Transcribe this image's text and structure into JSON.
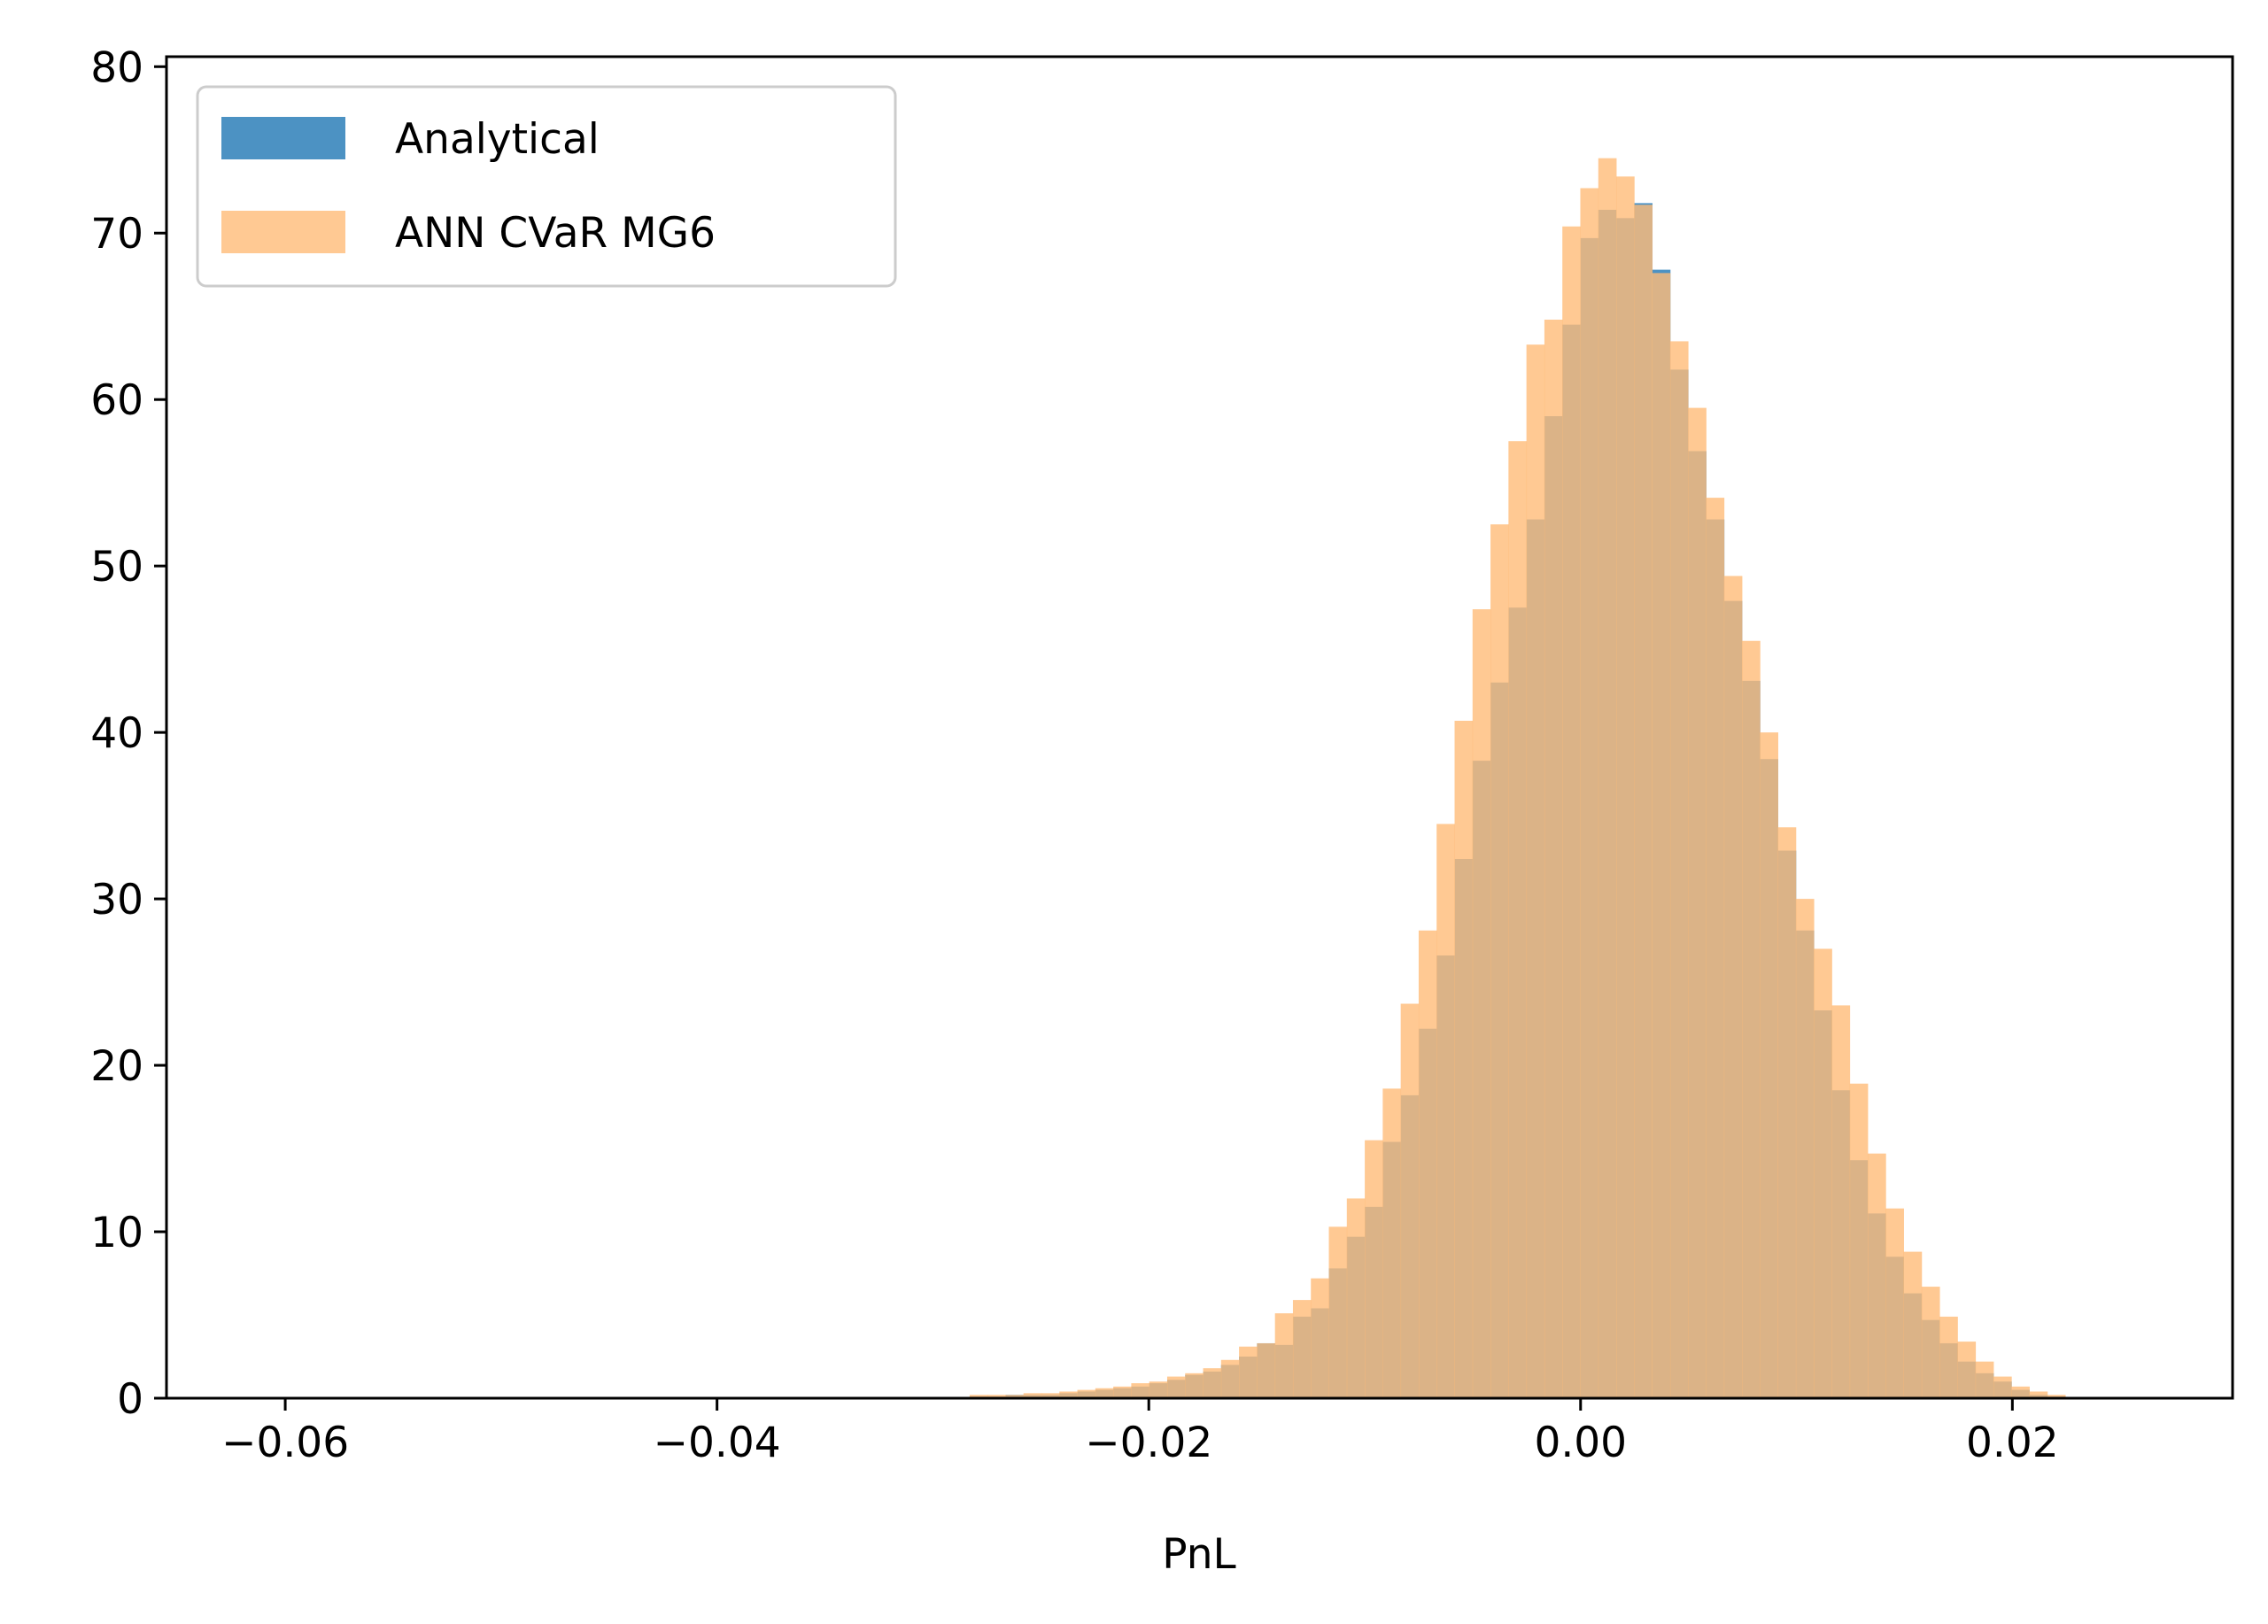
{
  "chart_data": {
    "type": "histogram",
    "title": "",
    "xlabel": "PnL",
    "ylabel": "",
    "xlim": [
      -0.0655,
      0.0302
    ],
    "ylim": [
      0,
      80.6
    ],
    "xticks": [
      -0.06,
      -0.04,
      -0.02,
      0.0,
      0.02
    ],
    "xtick_labels": [
      "−0.06",
      "−0.04",
      "−0.02",
      "0.00",
      "0.02"
    ],
    "yticks": [
      0,
      10,
      20,
      30,
      40,
      50,
      60,
      70,
      80
    ],
    "ytick_labels": [
      "0",
      "10",
      "20",
      "30",
      "40",
      "50",
      "60",
      "70",
      "80"
    ],
    "grid": false,
    "legend": {
      "position": "top-left"
    },
    "bin_width": 0.000832,
    "series": [
      {
        "name": "Analytical",
        "color": "#1f77b4",
        "alpha": 0.8,
        "bin_start": -0.0283,
        "values": [
          0.1,
          0.1,
          0.2,
          0.2,
          0.2,
          0.3,
          0.4,
          0.5,
          0.6,
          0.7,
          0.9,
          1.1,
          1.4,
          1.6,
          2.0,
          2.5,
          3.3,
          3.2,
          4.9,
          5.4,
          7.8,
          9.7,
          11.5,
          15.4,
          18.2,
          22.2,
          26.6,
          32.4,
          38.3,
          43.0,
          47.5,
          52.8,
          59.0,
          64.5,
          69.7,
          71.4,
          70.9,
          71.8,
          67.8,
          61.8,
          56.9,
          52.8,
          47.9,
          43.1,
          38.4,
          32.9,
          28.1,
          23.3,
          18.5,
          14.3,
          11.1,
          8.5,
          6.3,
          4.7,
          3.3,
          2.2,
          1.5,
          1.0,
          0.5,
          0.2,
          0.1
        ]
      },
      {
        "name": "ANN CVaR MG6",
        "color": "#ffbb78",
        "alpha": 0.8,
        "bin_start": -0.0283,
        "values": [
          0.2,
          0.2,
          0.2,
          0.3,
          0.3,
          0.4,
          0.5,
          0.6,
          0.7,
          0.9,
          1.0,
          1.3,
          1.5,
          1.8,
          2.3,
          3.1,
          3.3,
          5.1,
          5.9,
          7.2,
          10.3,
          12.0,
          15.5,
          18.6,
          23.7,
          28.1,
          34.5,
          40.7,
          47.4,
          52.5,
          57.5,
          63.3,
          64.8,
          70.4,
          72.7,
          74.5,
          73.4,
          71.7,
          67.6,
          63.5,
          59.5,
          54.1,
          49.4,
          45.5,
          40.0,
          34.3,
          30.0,
          27.0,
          23.6,
          18.9,
          14.7,
          11.4,
          8.8,
          6.7,
          4.9,
          3.4,
          2.2,
          1.3,
          0.7,
          0.4,
          0.2
        ]
      }
    ]
  }
}
